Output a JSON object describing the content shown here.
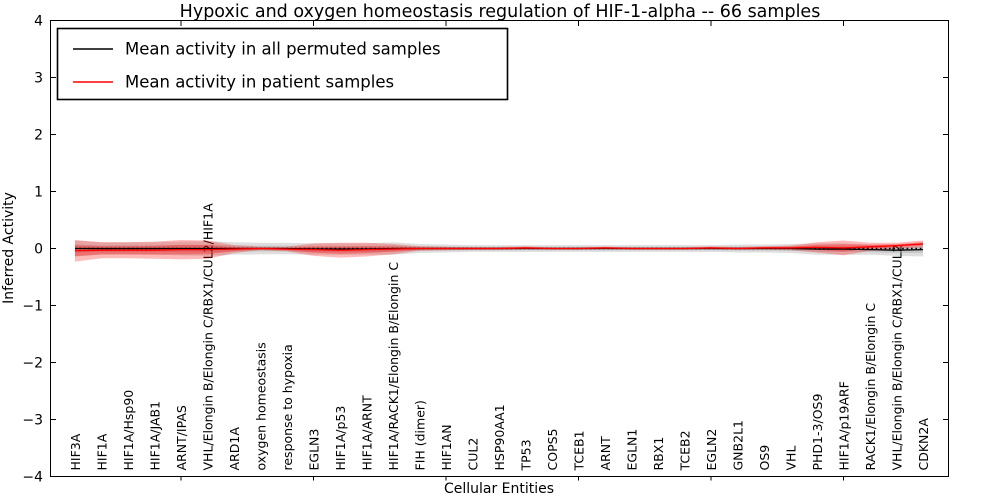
{
  "figure": {
    "background": "#ffffff"
  },
  "chart_data": {
    "type": "line",
    "title": "Hypoxic and oxygen homeostasis regulation of HIF-1-alpha -- 66 samples",
    "xlabel": "Cellular Entities",
    "ylabel": "Inferred Activity",
    "ylim": [
      -4,
      4
    ],
    "yticks": [
      4,
      3,
      2,
      1,
      0,
      -1,
      -2,
      -3,
      -4
    ],
    "yticklabels": [
      "4",
      "3",
      "2",
      "1",
      "0",
      "−1",
      "−2",
      "−3",
      "−4"
    ],
    "x_major_tick_indices": [
      4,
      9,
      14,
      19,
      24,
      29
    ],
    "grid": false,
    "legend_position": "upper left",
    "zero_line": {
      "style": "dotted",
      "color": "#000000",
      "y": 0
    },
    "categories": [
      "HIF3A",
      "HIF1A",
      "HIF1A/Hsp90",
      "HIF1A/JAB1",
      "ARNT/IPAS",
      "VHL/Elongin B/Elongin C/RBX1/CUL2/HIF1A",
      "ARD1A",
      "oxygen homeostasis",
      "response to hypoxia",
      "EGLN3",
      "HIF1A/p53",
      "HIF1A/ARNT",
      "HIF1A/RACK1/Elongin B/Elongin C",
      "FIH (dimer)",
      "HIF1AN",
      "CUL2",
      "HSP90AA1",
      "TP53",
      "COPS5",
      "TCEB1",
      "ARNT",
      "EGLN1",
      "RBX1",
      "TCEB2",
      "EGLN2",
      "GNB2L1",
      "OS9",
      "VHL",
      "PHD1-3/OS9",
      "HIF1A/p19ARF",
      "RACK1/Elongin B/Elongin C",
      "VHL/Elongin B/Elongin C/RBX1/CUL2",
      "CDKN2A"
    ],
    "series": [
      {
        "name": "Mean activity in all permuted samples",
        "color": "#000000",
        "band_color": "#000000",
        "values": [
          0,
          0,
          0,
          0,
          0,
          0,
          0,
          0,
          0,
          -0.01,
          -0.01,
          -0.01,
          0,
          0,
          0,
          0,
          0,
          0,
          0,
          0,
          0,
          0,
          0,
          0,
          0,
          0,
          0,
          0,
          -0.01,
          -0.01,
          -0.02,
          -0.03,
          -0.02
        ],
        "band_std": [
          0.14,
          0.11,
          0.11,
          0.11,
          0.12,
          0.13,
          0.11,
          0.1,
          0.1,
          0.1,
          0.1,
          0.1,
          0.11,
          0.08,
          0.07,
          0.06,
          0.06,
          0.06,
          0.06,
          0.06,
          0.06,
          0.06,
          0.06,
          0.06,
          0.06,
          0.07,
          0.07,
          0.08,
          0.1,
          0.1,
          0.09,
          0.1,
          0.12
        ]
      },
      {
        "name": "Mean activity in patient samples",
        "color": "#ff0000",
        "band_color": "#ff0000",
        "values": [
          -0.04,
          -0.03,
          -0.03,
          -0.03,
          -0.02,
          -0.02,
          -0.01,
          0,
          -0.01,
          -0.02,
          -0.03,
          -0.02,
          -0.01,
          0,
          0,
          0,
          0,
          0.01,
          0,
          0,
          0.01,
          0,
          0,
          0,
          0.01,
          0,
          0.01,
          0.01,
          0.02,
          0.01,
          0.03,
          0.05,
          0.08
        ],
        "band_std": [
          0.19,
          0.14,
          0.14,
          0.15,
          0.17,
          0.16,
          0.07,
          0.03,
          0.04,
          0.11,
          0.13,
          0.12,
          0.09,
          0.04,
          0.03,
          0.025,
          0.025,
          0.025,
          0.02,
          0.02,
          0.02,
          0.02,
          0.02,
          0.02,
          0.025,
          0.025,
          0.03,
          0.04,
          0.09,
          0.13,
          0.07,
          0.05,
          0.06
        ]
      }
    ]
  }
}
